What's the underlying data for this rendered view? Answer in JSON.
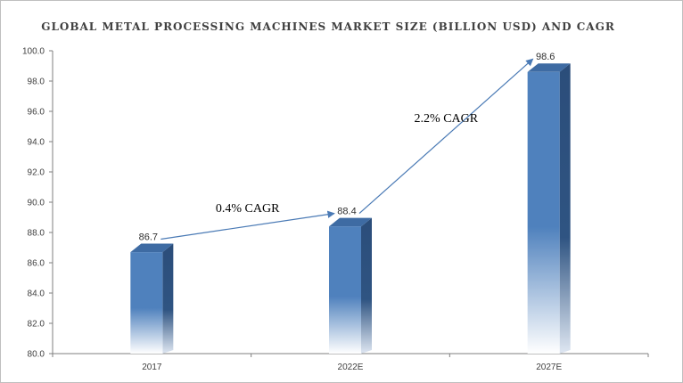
{
  "chart_data": {
    "type": "bar",
    "title": "GLOBAL METAL PROCESSING MACHINES MARKET SIZE (BILLION USD) AND CAGR",
    "categories": [
      "2017",
      "2022E",
      "2027E"
    ],
    "values": [
      86.7,
      88.4,
      98.6
    ],
    "value_labels": [
      "86.7",
      "88.4",
      "98.6"
    ],
    "ylim": [
      80.0,
      100.0
    ],
    "yticks": [
      "80.0",
      "82.0",
      "84.0",
      "86.0",
      "88.0",
      "90.0",
      "92.0",
      "94.0",
      "96.0",
      "98.0",
      "100.0"
    ],
    "xlabel": "",
    "ylabel": "",
    "grid": false,
    "bar_color": "#4f81bd",
    "bar_side_color": "#2b4d7a",
    "bar_top_color": "#3e6ba3",
    "annotations": [
      {
        "text": "0.4% CAGR",
        "from": 0,
        "to": 1
      },
      {
        "text": "2.2% CAGR",
        "from": 1,
        "to": 2
      }
    ],
    "arrow_color": "#4a7ab5"
  }
}
